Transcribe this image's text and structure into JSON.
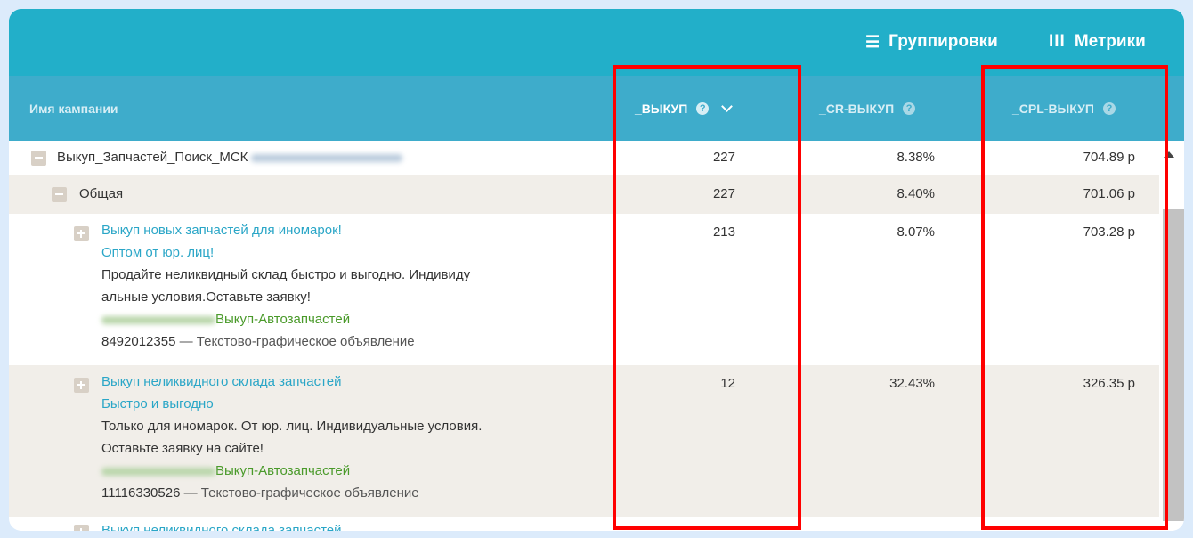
{
  "toolbar": {
    "groupings_label": "Группировки",
    "metrics_label": "Метрики"
  },
  "columns": {
    "name": "Имя кампании",
    "vykup": "_ВЫКУП",
    "cr": "_CR-ВЫКУП",
    "cpl": "_CPL-ВЫКУП"
  },
  "rows": [
    {
      "name": "Выкуп_Запчастей_Поиск_МСК",
      "vykup": "227",
      "cr": "8.38%",
      "cpl": "704.89 р"
    },
    {
      "name": "Общая",
      "vykup": "227",
      "cr": "8.40%",
      "cpl": "701.06 р"
    },
    {
      "title1": "Выкуп новых запчастей для иномарок!",
      "title2": "Оптом от юр. лиц!",
      "text1": "Продайте неликвидный склад быстро и выгодно. Индивиду",
      "text2": "альные условия.Оставьте заявку!",
      "url_path": "Выкуп-Автозапчастей",
      "ad_id": "8492012355",
      "sep": "—",
      "ad_type": "Текстово-графическое объявление",
      "vykup": "213",
      "cr": "8.07%",
      "cpl": "703.28 р"
    },
    {
      "title1": "Выкуп неликвидного склада запчастей",
      "title2": "Быстро и выгодно",
      "text1": "Только для иномарок. От юр. лиц. Индивидуальные условия.",
      "text2": "Оставьте заявку на сайте!",
      "url_path": "Выкуп-Автозапчастей",
      "ad_id": "11116330526",
      "sep": "—",
      "ad_type": "Текстово-графическое объявление",
      "vykup": "12",
      "cr": "32.43%",
      "cpl": "326.35 р"
    },
    {
      "title1": "Выкуп неликвидного склада запчастей"
    }
  ],
  "colors": {
    "topbar": "#22afc9",
    "header": "#3eaccb",
    "link": "#2aa6c7",
    "url": "#4a9a2a",
    "highlight": "#ff0000"
  }
}
